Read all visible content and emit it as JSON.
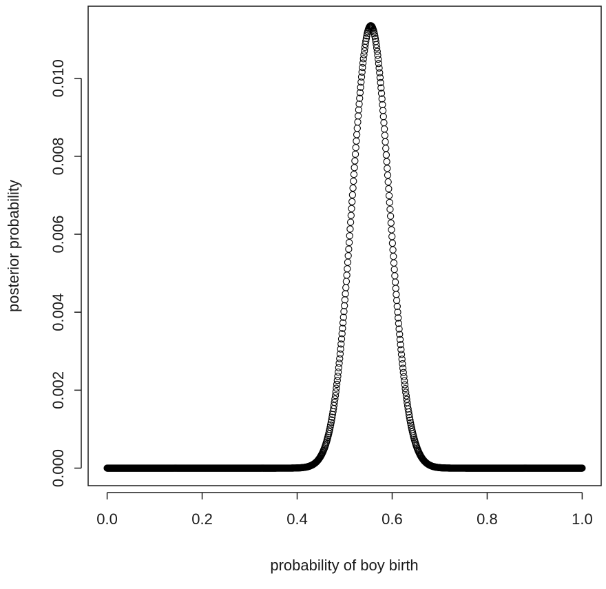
{
  "chart_data": {
    "type": "scatter",
    "title": "",
    "xlabel": "probability of boy birth",
    "ylabel": "posterior probability",
    "xlim": [
      -0.04,
      1.04
    ],
    "ylim": [
      -0.00045,
      0.01185
    ],
    "x_ticks": [
      0.0,
      0.2,
      0.4,
      0.6,
      0.8,
      1.0
    ],
    "x_tick_labels": [
      "0.0",
      "0.2",
      "0.4",
      "0.6",
      "0.8",
      "1.0"
    ],
    "y_ticks": [
      0.0,
      0.002,
      0.004,
      0.006,
      0.008,
      0.01
    ],
    "y_tick_labels": [
      "0.000",
      "0.002",
      "0.004",
      "0.006",
      "0.008",
      "0.010"
    ],
    "grid": false,
    "legend": "none",
    "marker": "open-circle",
    "series": [
      {
        "x_from": 0,
        "x_to": 1,
        "n_points": 1000,
        "peak_x": 0.555,
        "peak_y": 0.01135,
        "sd": 0.0392
      }
    ]
  }
}
